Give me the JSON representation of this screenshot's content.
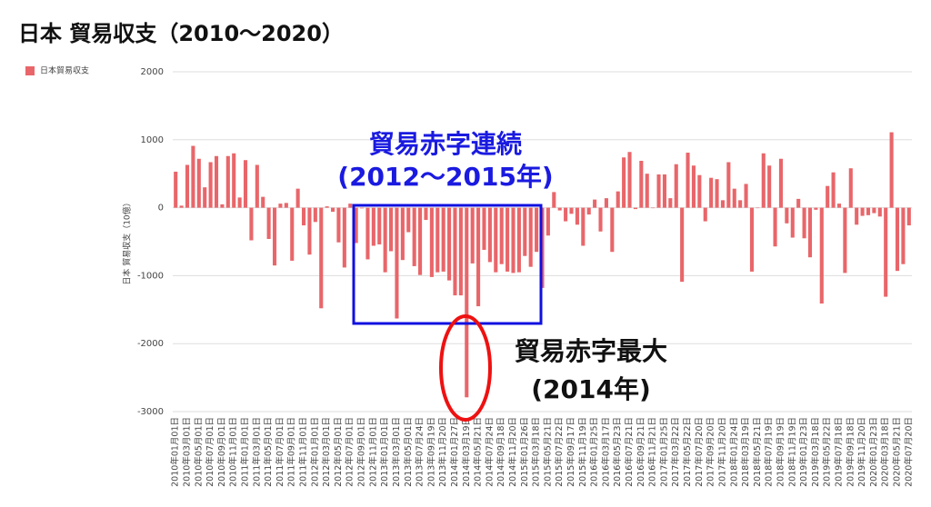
{
  "chart_data": {
    "type": "bar",
    "title": "日本 貿易収支（2010〜2020）",
    "y_axis_label": "日本 貿易収支（10億）",
    "legend": "日本貿易収支",
    "color": "#e8666a",
    "ylim": [
      -3000,
      2000
    ],
    "yticks": [
      -3000,
      -2000,
      -1000,
      0,
      1000,
      2000
    ],
    "grid": true,
    "annotations": [
      "貿易赤字連続",
      "(2012〜2015年)",
      "貿易赤字最大",
      "(2014年)"
    ],
    "categories": [
      "2010年01月01日",
      null,
      "2010年03月01日",
      null,
      "2010年05月01日",
      null,
      "2010年07月01日",
      null,
      "2010年09月01日",
      null,
      "2010年11月01日",
      null,
      "2011年01月01日",
      null,
      "2011年03月01日",
      null,
      "2011年05月01日",
      null,
      "2011年07月01日",
      null,
      "2011年09月01日",
      null,
      "2011年11月01日",
      null,
      "2012年01月01日",
      null,
      "2012年03月01日",
      null,
      "2012年05月01日",
      null,
      "2012年07月01日",
      null,
      "2012年09月01日",
      null,
      "2012年11月01日",
      null,
      "2013年01月01日",
      null,
      "2013年03月01日",
      null,
      "2013年05月01日",
      null,
      "2013年07月24日",
      null,
      "2013年09月19日",
      null,
      "2013年11月20日",
      null,
      "2014年01月27日",
      null,
      "2014年03月19日",
      null,
      "2014年05月21日",
      null,
      "2014年07月24日",
      null,
      "2014年09月18日",
      null,
      "2014年11月20日",
      null,
      "2015年01月26日",
      null,
      "2015年03月18日",
      null,
      "2015年05月21日",
      null,
      "2015年07月22日",
      null,
      "2015年09月17日",
      null,
      "2015年11月19日",
      null,
      "2016年01月25日",
      null,
      "2016年03月17日",
      null,
      "2016年05月23日",
      null,
      "2016年07月21日",
      null,
      "2016年09月21日",
      null,
      "2016年11月21日",
      null,
      "2017年01月25日",
      null,
      "2017年03月22日",
      null,
      "2017年05月22日",
      null,
      "2017年07月20日",
      null,
      "2017年09月20日",
      null,
      "2017年11月20日",
      null,
      "2018年01月24日",
      null,
      "2018年03月19日",
      null,
      "2018年05月21日",
      null,
      "2018年07月19日",
      null,
      "2018年09月19日",
      null,
      "2018年11月19日",
      null,
      "2019年01月23日",
      null,
      "2019年03月18日",
      null,
      "2019年05月22日",
      null,
      "2019年07月18日",
      null,
      "2019年09月18日",
      null,
      "2019年11月20日",
      null,
      "2020年01月23日",
      null,
      "2020年03月18日",
      null,
      "2020年05月21日",
      null,
      "2020年07月20日"
    ],
    "values": [
      530,
      30,
      630,
      910,
      720,
      300,
      670,
      760,
      50,
      760,
      800,
      150,
      700,
      -480,
      630,
      160,
      -460,
      -850,
      60,
      70,
      -780,
      280,
      -260,
      -690,
      -210,
      -1480,
      20,
      -60,
      -510,
      -880,
      60,
      -520,
      -10,
      -760,
      -560,
      -540,
      -950,
      -640,
      -1630,
      -770,
      -360,
      -860,
      -990,
      -180,
      -1020,
      -950,
      -940,
      -1070,
      -1290,
      -1290,
      -2790,
      -820,
      -1450,
      -620,
      -800,
      -950,
      -830,
      -940,
      -960,
      -950,
      -710,
      -870,
      -650,
      -1180,
      -410,
      230,
      -40,
      -200,
      -90,
      -250,
      -560,
      -100,
      120,
      -350,
      140,
      -650,
      240,
      740,
      820,
      -20,
      690,
      500,
      0,
      490,
      490,
      140,
      640,
      -1090,
      810,
      620,
      480,
      -200,
      440,
      420,
      110,
      670,
      280,
      110,
      350,
      -940,
      0,
      800,
      620,
      -570,
      720,
      -230,
      -440,
      130,
      -450,
      -730,
      -30,
      -1410,
      320,
      520,
      60,
      -960,
      580,
      -250,
      -120,
      -110,
      -80,
      -130,
      -1310,
      1110,
      -930,
      -830,
      -260
    ]
  }
}
